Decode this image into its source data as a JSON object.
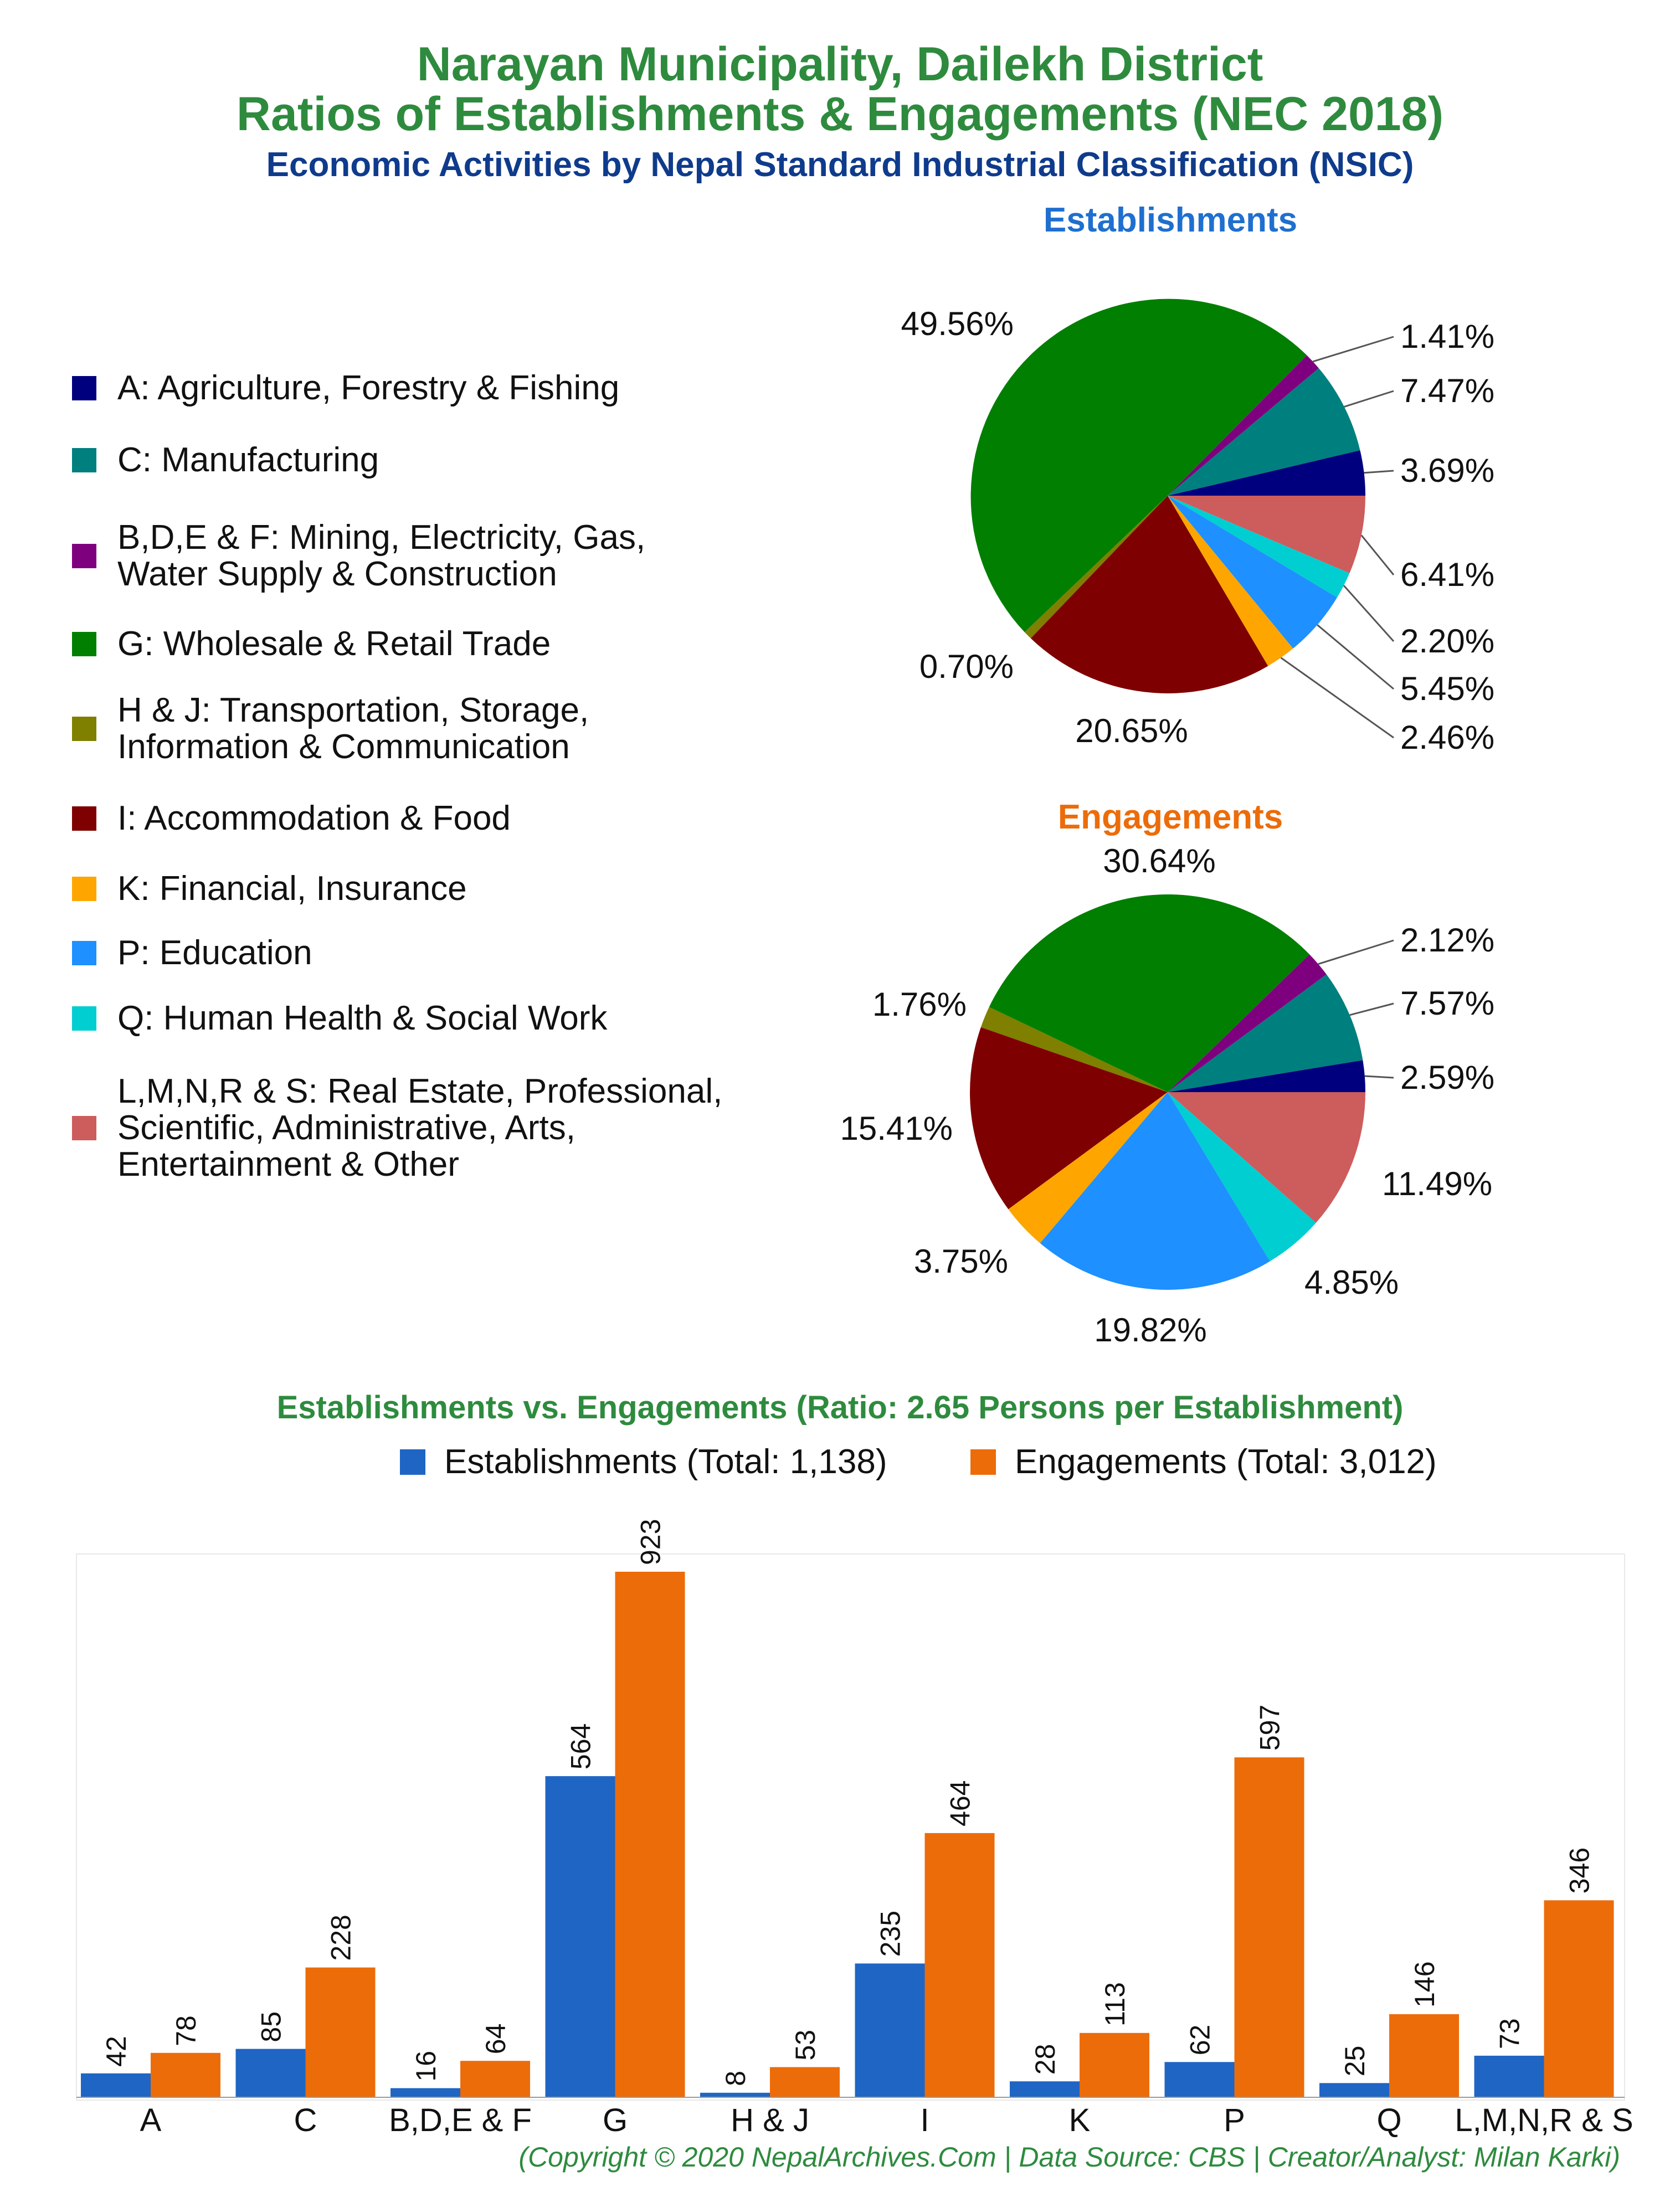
{
  "header": {
    "title_line1": "Narayan Municipality, Dailekh District",
    "title_line2": "Ratios of Establishments & Engagements (NEC 2018)",
    "subtitle": "Economic Activities by Nepal Standard Industrial Classification (NSIC)"
  },
  "legend": {
    "items": [
      {
        "label_lines": [
          "A: Agriculture, Forestry & Fishing"
        ],
        "color": "#00007f"
      },
      {
        "label_lines": [
          "C: Manufacturing"
        ],
        "color": "#007f7f"
      },
      {
        "label_lines": [
          "B,D,E & F: Mining, Electricity, Gas,",
          "Water Supply & Construction"
        ],
        "color": "#7f007f"
      },
      {
        "label_lines": [
          "G: Wholesale & Retail Trade"
        ],
        "color": "#007f00"
      },
      {
        "label_lines": [
          "H & J: Transportation, Storage,",
          "Information & Communication"
        ],
        "color": "#7f7f00"
      },
      {
        "label_lines": [
          "I: Accommodation & Food"
        ],
        "color": "#7f0000"
      },
      {
        "label_lines": [
          "K: Financial, Insurance"
        ],
        "color": "#ffa500"
      },
      {
        "label_lines": [
          "P: Education"
        ],
        "color": "#1e90ff"
      },
      {
        "label_lines": [
          "Q: Human Health & Social Work"
        ],
        "color": "#00ced1"
      },
      {
        "label_lines": [
          "L,M,N,R & S: Real Estate, Professional,",
          "Scientific, Administrative, Arts,",
          "Entertainment & Other"
        ],
        "color": "#cd5c5c"
      }
    ]
  },
  "bar_chart": {
    "title": "Establishments vs. Engagements (Ratio: 2.65 Persons per Establishment)",
    "legend_establishments": "Establishments (Total: 1,138)",
    "legend_engagements": "Engagements (Total: 3,012)"
  },
  "footer": "(Copyright © 2020 NepalArchives.Com | Data Source: CBS | Creator/Analyst: Milan Karki)",
  "chart_data": [
    {
      "type": "pie",
      "title": "Establishments",
      "title_color": "#1f6fcf",
      "slices": [
        {
          "category": "A",
          "percent": 3.69,
          "label": "3.69%",
          "color": "#00007f"
        },
        {
          "category": "C",
          "percent": 7.47,
          "label": "7.47%",
          "color": "#007f7f"
        },
        {
          "category": "B,D,E & F",
          "percent": 1.41,
          "label": "1.41%",
          "color": "#7f007f"
        },
        {
          "category": "G",
          "percent": 49.56,
          "label": "49.56%",
          "color": "#007f00"
        },
        {
          "category": "H & J",
          "percent": 0.7,
          "label": "0.70%",
          "color": "#7f7f00"
        },
        {
          "category": "I",
          "percent": 20.65,
          "label": "20.65%",
          "color": "#7f0000"
        },
        {
          "category": "K",
          "percent": 2.46,
          "label": "2.46%",
          "color": "#ffa500"
        },
        {
          "category": "P",
          "percent": 5.45,
          "label": "5.45%",
          "color": "#1e90ff"
        },
        {
          "category": "Q",
          "percent": 2.2,
          "label": "2.20%",
          "color": "#00ced1"
        },
        {
          "category": "L,M,N,R & S",
          "percent": 6.41,
          "label": "6.41%",
          "color": "#cd5c5c"
        }
      ]
    },
    {
      "type": "pie",
      "title": "Engagements",
      "title_color": "#ec6c0a",
      "slices": [
        {
          "category": "A",
          "percent": 2.59,
          "label": "2.59%",
          "color": "#00007f"
        },
        {
          "category": "C",
          "percent": 7.57,
          "label": "7.57%",
          "color": "#007f7f"
        },
        {
          "category": "B,D,E & F",
          "percent": 2.12,
          "label": "2.12%",
          "color": "#7f007f"
        },
        {
          "category": "G",
          "percent": 30.64,
          "label": "30.64%",
          "color": "#007f00"
        },
        {
          "category": "H & J",
          "percent": 1.76,
          "label": "1.76%",
          "color": "#7f7f00"
        },
        {
          "category": "I",
          "percent": 15.41,
          "label": "15.41%",
          "color": "#7f0000"
        },
        {
          "category": "K",
          "percent": 3.75,
          "label": "3.75%",
          "color": "#ffa500"
        },
        {
          "category": "P",
          "percent": 19.82,
          "label": "19.82%",
          "color": "#1e90ff"
        },
        {
          "category": "Q",
          "percent": 4.85,
          "label": "4.85%",
          "color": "#00ced1"
        },
        {
          "category": "L,M,N,R & S",
          "percent": 11.49,
          "label": "11.49%",
          "color": "#cd5c5c"
        }
      ]
    },
    {
      "type": "bar",
      "title": "Establishments vs. Engagements (Ratio: 2.65 Persons per Establishment)",
      "categories": [
        "A",
        "C",
        "B,D,E & F",
        "G",
        "H & J",
        "I",
        "K",
        "P",
        "Q",
        "L,M,N,R & S"
      ],
      "series": [
        {
          "name": "Establishments (Total: 1,138)",
          "color": "#1f65c4",
          "values": [
            42,
            85,
            16,
            564,
            8,
            235,
            28,
            62,
            25,
            73
          ]
        },
        {
          "name": "Engagements (Total: 3,012)",
          "color": "#ec6c0a",
          "values": [
            78,
            228,
            64,
            923,
            53,
            464,
            113,
            597,
            146,
            346
          ]
        }
      ],
      "ylim": [
        0,
        950
      ],
      "grid": false
    }
  ]
}
